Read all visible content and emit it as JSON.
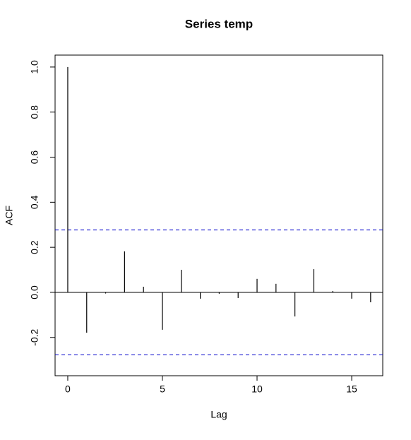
{
  "chart_data": {
    "type": "acf",
    "title": "Series  temp",
    "x_label": "Lag",
    "y_label": "ACF",
    "x": [
      0,
      1,
      2,
      3,
      4,
      5,
      6,
      7,
      8,
      9,
      10,
      11,
      12,
      13,
      14,
      15,
      16
    ],
    "values": [
      1.0,
      -0.179,
      -0.005,
      0.182,
      0.025,
      -0.166,
      0.1,
      -0.028,
      -0.006,
      -0.025,
      0.06,
      0.038,
      -0.107,
      0.103,
      0.006,
      -0.028,
      -0.044
    ],
    "color": "#000000",
    "ci_lines": [
      0.277,
      -0.277
    ],
    "ci_color": "#0000cc",
    "xlim": [
      -0.67,
      16.64
    ],
    "xticks": [
      0,
      5,
      10,
      15
    ],
    "ylim": [
      -0.37,
      1.053
    ],
    "yticks": [
      -0.2,
      {
        "value": 0,
        "label": "0.0"
      },
      0.2,
      0.4,
      0.6,
      0.8,
      {
        "value": 1,
        "label": "1.0"
      }
    ]
  }
}
